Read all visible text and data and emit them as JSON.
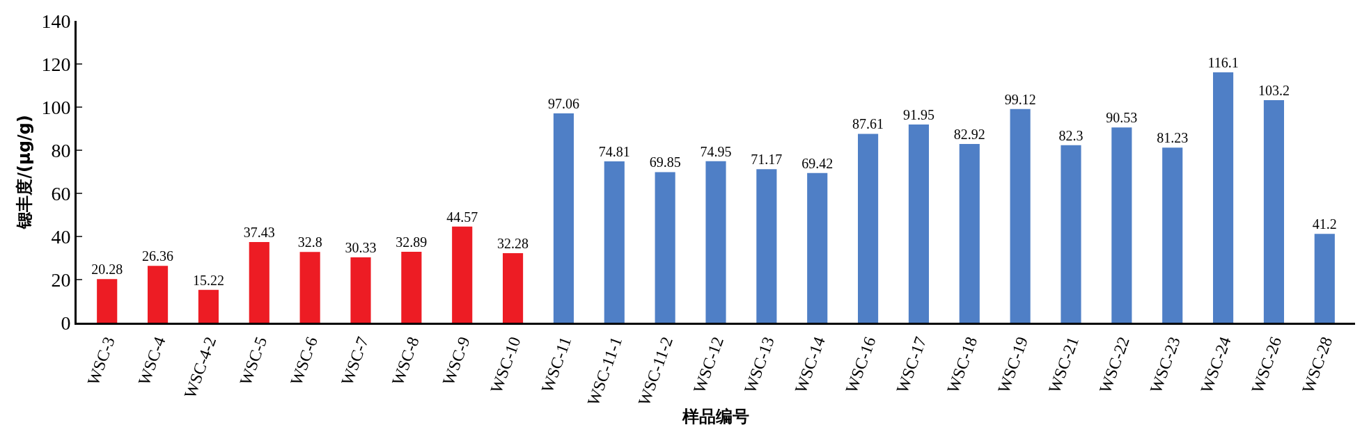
{
  "chart_data": {
    "type": "bar",
    "xlabel": "样品编号",
    "ylabel": "锶丰度/(μg/g)",
    "categories": [
      "WSC-3",
      "WSC-4",
      "WSC-4-2",
      "WSC-5",
      "WSC-6",
      "WSC-7",
      "WSC-8",
      "WSC-9",
      "WSC-10",
      "WSC-11",
      "WSC-11-1",
      "WSC-11-2",
      "WSC-12",
      "WSC-13",
      "WSC-14",
      "WSC-16",
      "WSC-17",
      "WSC-18",
      "WSC-19",
      "WSC-21",
      "WSC-22",
      "WSC-23",
      "WSC-24",
      "WSC-26",
      "WSC-28"
    ],
    "values": [
      20.28,
      26.36,
      15.22,
      37.43,
      32.8,
      30.33,
      32.89,
      44.57,
      32.28,
      97.06,
      74.81,
      69.85,
      74.95,
      71.17,
      69.42,
      87.61,
      91.95,
      82.92,
      99.12,
      82.3,
      90.53,
      81.23,
      116.1,
      103.2,
      41.2
    ],
    "colors": [
      "#ed1c24",
      "#ed1c24",
      "#ed1c24",
      "#ed1c24",
      "#ed1c24",
      "#ed1c24",
      "#ed1c24",
      "#ed1c24",
      "#ed1c24",
      "#4f7fc6",
      "#4f7fc6",
      "#4f7fc6",
      "#4f7fc6",
      "#4f7fc6",
      "#4f7fc6",
      "#4f7fc6",
      "#4f7fc6",
      "#4f7fc6",
      "#4f7fc6",
      "#4f7fc6",
      "#4f7fc6",
      "#4f7fc6",
      "#4f7fc6",
      "#4f7fc6",
      "#4f7fc6"
    ],
    "ylim": [
      0,
      140
    ],
    "yticks": [
      0,
      20,
      40,
      60,
      80,
      100,
      120,
      140
    ],
    "data_labels": true
  }
}
